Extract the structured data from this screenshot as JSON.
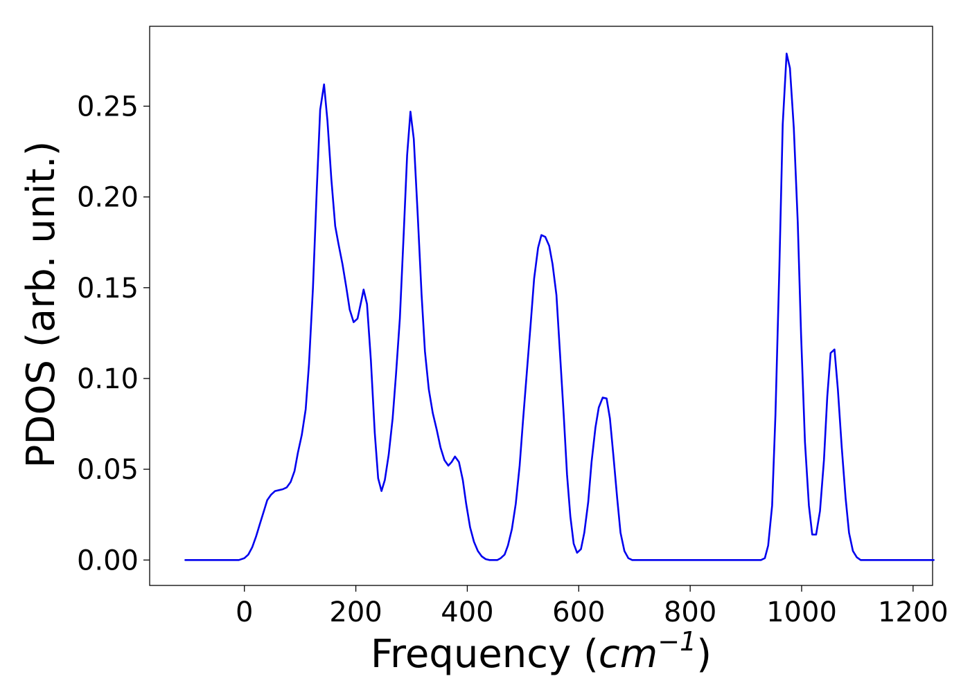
{
  "chart_data": {
    "type": "line",
    "title": "",
    "xlabel_prefix": "Frequency (",
    "xlabel_unit_base": "cm",
    "xlabel_unit_exp": "−1",
    "xlabel_suffix": ")",
    "ylabel": "PDOS (arb. unit.)",
    "xlim": [
      -170,
      1235
    ],
    "ylim": [
      -0.014,
      0.294
    ],
    "xticks": [
      0,
      200,
      400,
      600,
      800,
      1000,
      1200
    ],
    "xtick_labels": [
      "0",
      "200",
      "400",
      "600",
      "800",
      "1000",
      "1200"
    ],
    "yticks": [
      0.0,
      0.05,
      0.1,
      0.15,
      0.2,
      0.25
    ],
    "ytick_labels": [
      "0.00",
      "0.05",
      "0.10",
      "0.15",
      "0.20",
      "0.25"
    ],
    "grid": false,
    "legend": "none",
    "series": [
      {
        "color": "#0000ee",
        "points": [
          [
            -106,
            0.0
          ],
          [
            -10,
            0.0
          ],
          [
            0,
            0.001
          ],
          [
            7,
            0.003
          ],
          [
            14,
            0.007
          ],
          [
            21,
            0.013
          ],
          [
            28,
            0.02
          ],
          [
            35,
            0.027
          ],
          [
            41,
            0.033
          ],
          [
            48,
            0.036
          ],
          [
            55,
            0.038
          ],
          [
            62,
            0.0385
          ],
          [
            69,
            0.039
          ],
          [
            76,
            0.04
          ],
          [
            83,
            0.043
          ],
          [
            90,
            0.049
          ],
          [
            96,
            0.059
          ],
          [
            103,
            0.069
          ],
          [
            110,
            0.083
          ],
          [
            116,
            0.108
          ],
          [
            123,
            0.15
          ],
          [
            130,
            0.205
          ],
          [
            136,
            0.248
          ],
          [
            143,
            0.262
          ],
          [
            149,
            0.242
          ],
          [
            156,
            0.21
          ],
          [
            163,
            0.184
          ],
          [
            169,
            0.174
          ],
          [
            176,
            0.163
          ],
          [
            183,
            0.15
          ],
          [
            189,
            0.138
          ],
          [
            196,
            0.131
          ],
          [
            203,
            0.133
          ],
          [
            210,
            0.143
          ],
          [
            214,
            0.149
          ],
          [
            220,
            0.141
          ],
          [
            227,
            0.11
          ],
          [
            234,
            0.07
          ],
          [
            240,
            0.045
          ],
          [
            246,
            0.038
          ],
          [
            252,
            0.044
          ],
          [
            259,
            0.058
          ],
          [
            266,
            0.078
          ],
          [
            272,
            0.102
          ],
          [
            279,
            0.133
          ],
          [
            286,
            0.18
          ],
          [
            292,
            0.223
          ],
          [
            298,
            0.247
          ],
          [
            304,
            0.232
          ],
          [
            311,
            0.19
          ],
          [
            318,
            0.146
          ],
          [
            324,
            0.115
          ],
          [
            331,
            0.094
          ],
          [
            338,
            0.081
          ],
          [
            345,
            0.072
          ],
          [
            352,
            0.062
          ],
          [
            359,
            0.055
          ],
          [
            366,
            0.052
          ],
          [
            372,
            0.054
          ],
          [
            378,
            0.057
          ],
          [
            385,
            0.054
          ],
          [
            392,
            0.044
          ],
          [
            398,
            0.031
          ],
          [
            405,
            0.018
          ],
          [
            412,
            0.01
          ],
          [
            419,
            0.005
          ],
          [
            426,
            0.002
          ],
          [
            433,
            0.0005
          ],
          [
            440,
            0.0
          ],
          [
            447,
            0.0
          ],
          [
            454,
            0.0
          ],
          [
            460,
            0.001
          ],
          [
            467,
            0.003
          ],
          [
            473,
            0.008
          ],
          [
            480,
            0.017
          ],
          [
            487,
            0.031
          ],
          [
            494,
            0.052
          ],
          [
            500,
            0.077
          ],
          [
            507,
            0.104
          ],
          [
            514,
            0.131
          ],
          [
            520,
            0.155
          ],
          [
            527,
            0.172
          ],
          [
            533,
            0.179
          ],
          [
            540,
            0.178
          ],
          [
            547,
            0.173
          ],
          [
            553,
            0.163
          ],
          [
            560,
            0.146
          ],
          [
            566,
            0.116
          ],
          [
            573,
            0.08
          ],
          [
            579,
            0.047
          ],
          [
            585,
            0.024
          ],
          [
            591,
            0.009
          ],
          [
            597,
            0.004
          ],
          [
            604,
            0.006
          ],
          [
            610,
            0.015
          ],
          [
            617,
            0.032
          ],
          [
            623,
            0.054
          ],
          [
            630,
            0.073
          ],
          [
            636,
            0.084
          ],
          [
            643,
            0.0895
          ],
          [
            650,
            0.089
          ],
          [
            656,
            0.078
          ],
          [
            662,
            0.058
          ],
          [
            669,
            0.034
          ],
          [
            675,
            0.015
          ],
          [
            682,
            0.005
          ],
          [
            689,
            0.001
          ],
          [
            696,
            0.0
          ],
          [
            720,
            0.0
          ],
          [
            800,
            0.0
          ],
          [
            900,
            0.0
          ],
          [
            927,
            0.0
          ],
          [
            934,
            0.001
          ],
          [
            940,
            0.008
          ],
          [
            947,
            0.03
          ],
          [
            953,
            0.08
          ],
          [
            960,
            0.16
          ],
          [
            966,
            0.24
          ],
          [
            973,
            0.279
          ],
          [
            979,
            0.271
          ],
          [
            986,
            0.238
          ],
          [
            993,
            0.186
          ],
          [
            999,
            0.124
          ],
          [
            1006,
            0.065
          ],
          [
            1013,
            0.03
          ],
          [
            1019,
            0.014
          ],
          [
            1026,
            0.014
          ],
          [
            1033,
            0.027
          ],
          [
            1040,
            0.055
          ],
          [
            1046,
            0.09
          ],
          [
            1052,
            0.114
          ],
          [
            1059,
            0.116
          ],
          [
            1065,
            0.094
          ],
          [
            1072,
            0.062
          ],
          [
            1079,
            0.034
          ],
          [
            1085,
            0.015
          ],
          [
            1092,
            0.005
          ],
          [
            1099,
            0.0015
          ],
          [
            1106,
            0.0
          ],
          [
            1200,
            0.0
          ],
          [
            1237,
            0.0
          ]
        ]
      }
    ]
  }
}
